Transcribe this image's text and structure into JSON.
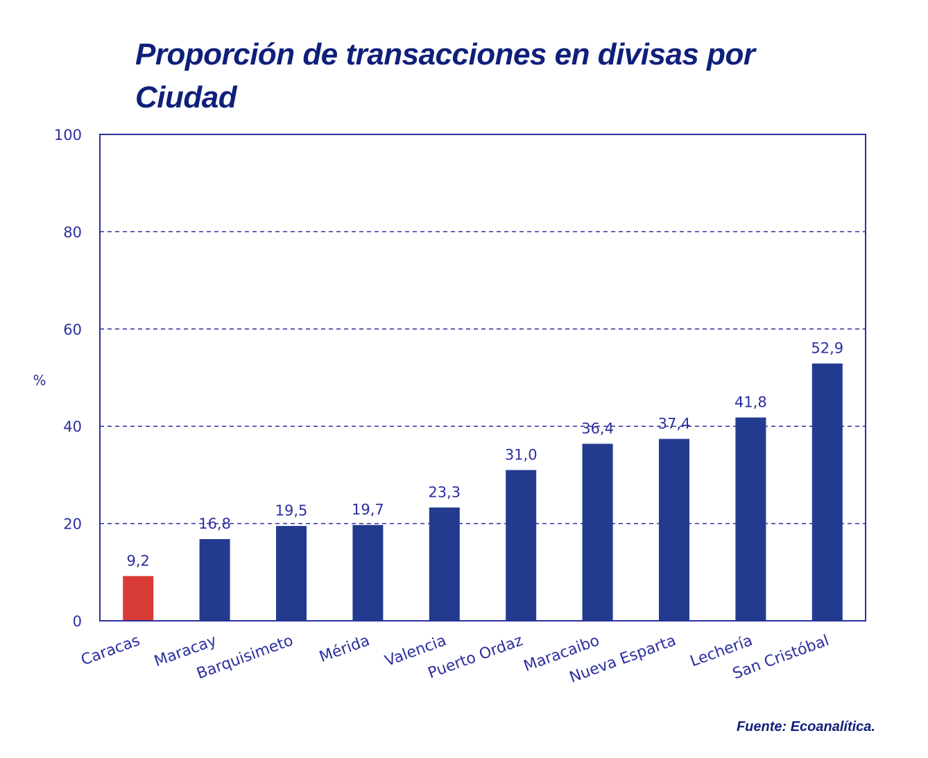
{
  "title": "Proporción de transacciones en divisas por Ciudad",
  "source": "Fuente: Ecoanalítica.",
  "colors": {
    "bar": "#223b8f",
    "highlight": "#d83a35",
    "text": "#2b2f9e",
    "axis": "#2b2f9e",
    "grid": "#2b2f9e"
  },
  "chart_data": {
    "type": "bar",
    "categories": [
      "Caracas",
      "Maracay",
      "Barquisimeto",
      "Mérida",
      "Valencia",
      "Puerto Ordaz",
      "Maracaibo",
      "Nueva Esparta",
      "Lechería",
      "San Cristóbal"
    ],
    "values": [
      9.2,
      16.8,
      19.5,
      19.7,
      23.3,
      31.0,
      36.4,
      37.4,
      41.8,
      52.9
    ],
    "value_labels": [
      "9,2",
      "16,8",
      "19,5",
      "19,7",
      "23,3",
      "31,0",
      "36,4",
      "37,4",
      "41,8",
      "52,9"
    ],
    "highlight_index": 0,
    "ylabel": "%",
    "ylim": [
      0,
      100
    ],
    "yticks": [
      0,
      20,
      40,
      60,
      80,
      100
    ],
    "grid": "dashed horizontal",
    "legend": "none"
  }
}
